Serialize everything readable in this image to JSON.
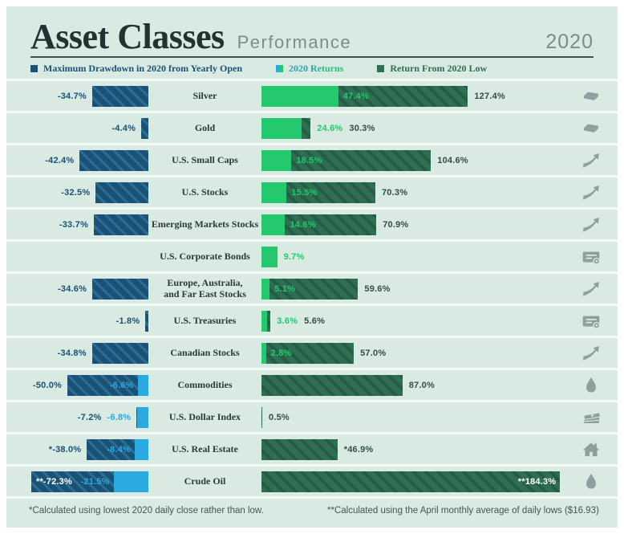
{
  "header": {
    "title": "Asset Classes",
    "subtitle": "Performance",
    "year": "2020"
  },
  "legend": {
    "drawdown_label": "Maximum Drawdown in 2020 from Yearly Open",
    "returns_label": "2020 Returns",
    "low_label": "Return From 2020 Low"
  },
  "colors": {
    "background": "#d9eae3",
    "drawdown_navy": "#1a5276",
    "negative_return_cyan": "#29abe2",
    "positive_return_green": "#23c96c",
    "return_from_low_dark_green": "#2e6e52",
    "icon_gray": "#8f9f9e"
  },
  "footnotes": {
    "left": "*Calculated using lowest 2020 daily close rather than low.",
    "right": "**Calculated using the April monthly average of daily lows ($16.93)"
  },
  "chart_data": {
    "type": "bar",
    "orientation": "horizontal",
    "title": "Asset Classes Performance 2020",
    "unit": "%",
    "categories": [
      "Silver",
      "Gold",
      "U.S. Small Caps",
      "U.S. Stocks",
      "Emerging Markets Stocks",
      "U.S. Corporate Bonds",
      "Europe, Australia, and Far East Stocks",
      "U.S. Treasuries",
      "Canadian Stocks",
      "Commodities",
      "U.S. Dollar Index",
      "U.S. Real Estate",
      "Crude Oil"
    ],
    "series": [
      {
        "name": "Maximum Drawdown in 2020 from Yearly Open",
        "values": [
          -34.7,
          -4.4,
          -42.4,
          -32.5,
          -33.7,
          null,
          -34.6,
          -1.8,
          -34.8,
          -50.0,
          -7.2,
          -38.0,
          -72.3
        ]
      },
      {
        "name": "2020 Returns",
        "values": [
          47.4,
          24.6,
          18.5,
          15.5,
          14.6,
          9.7,
          5.1,
          3.6,
          2.8,
          -6.6,
          -6.8,
          -8.4,
          -21.5
        ]
      },
      {
        "name": "Return From 2020 Low",
        "values": [
          127.4,
          30.3,
          104.6,
          70.3,
          70.9,
          null,
          59.6,
          5.6,
          57.0,
          87.0,
          0.5,
          46.9,
          184.3
        ]
      }
    ],
    "legend_position": "top",
    "grid": false
  },
  "rows": [
    {
      "label": "Silver",
      "icon": "silver-bars-icon",
      "drawdown": {
        "pct": 34.7,
        "text": "-34.7%",
        "inside": false
      },
      "pos": {
        "pct": 47.4,
        "text": "47.4%",
        "label": "inside"
      },
      "low": {
        "pct": 127.4,
        "text": "127.4%",
        "label": "outside"
      }
    },
    {
      "label": "Gold",
      "icon": "gold-bars-icon",
      "drawdown": {
        "pct": 4.4,
        "text": "-4.4%",
        "inside": false
      },
      "pos": {
        "pct": 24.6,
        "text": "24.6%",
        "label": "outside"
      },
      "low": {
        "pct": 30.3,
        "text": "30.3%",
        "label": "outside"
      }
    },
    {
      "label": "U.S. Small Caps",
      "icon": "stocks-chart-icon",
      "drawdown": {
        "pct": 42.4,
        "text": "-42.4%",
        "inside": false
      },
      "pos": {
        "pct": 18.5,
        "text": "18.5%",
        "label": "inside"
      },
      "low": {
        "pct": 104.6,
        "text": "104.6%",
        "label": "outside"
      }
    },
    {
      "label": "U.S. Stocks",
      "icon": "stocks-chart-icon",
      "drawdown": {
        "pct": 32.5,
        "text": "-32.5%",
        "inside": false
      },
      "pos": {
        "pct": 15.5,
        "text": "15.5%",
        "label": "inside"
      },
      "low": {
        "pct": 70.3,
        "text": "70.3%",
        "label": "outside"
      }
    },
    {
      "label": "Emerging Markets Stocks",
      "icon": "stocks-chart-icon",
      "drawdown": {
        "pct": 33.7,
        "text": "-33.7%",
        "inside": false
      },
      "pos": {
        "pct": 14.6,
        "text": "14.6%",
        "label": "inside"
      },
      "low": {
        "pct": 70.9,
        "text": "70.9%",
        "label": "outside"
      }
    },
    {
      "label": "U.S. Corporate Bonds",
      "icon": "bond-certificate-icon",
      "pos": {
        "pct": 9.7,
        "text": "9.7%",
        "label": "outside"
      }
    },
    {
      "label": "Europe, Australia,\nand Far East Stocks",
      "icon": "stocks-chart-icon",
      "drawdown": {
        "pct": 34.6,
        "text": "-34.6%",
        "inside": false
      },
      "pos": {
        "pct": 5.1,
        "text": "5.1%",
        "label": "inside"
      },
      "low": {
        "pct": 59.6,
        "text": "59.6%",
        "label": "outside"
      }
    },
    {
      "label": "U.S. Treasuries",
      "icon": "bond-certificate-icon",
      "drawdown": {
        "pct": 1.8,
        "text": "-1.8%",
        "inside": false
      },
      "pos": {
        "pct": 3.6,
        "text": "3.6%",
        "label": "outside"
      },
      "low": {
        "pct": 5.6,
        "text": "5.6%",
        "label": "outside"
      }
    },
    {
      "label": "Canadian Stocks",
      "icon": "stocks-chart-icon",
      "drawdown": {
        "pct": 34.8,
        "text": "-34.8%",
        "inside": false
      },
      "pos": {
        "pct": 2.8,
        "text": "2.8%",
        "label": "inside"
      },
      "low": {
        "pct": 57.0,
        "text": "57.0%",
        "label": "outside"
      }
    },
    {
      "label": "Commodities",
      "icon": "oil-droplet-icon",
      "drawdown": {
        "pct": 50.0,
        "text": "-50.0%",
        "inside": false
      },
      "neg": {
        "pct": 6.6,
        "text": "-6.6%",
        "label": "inside"
      },
      "low": {
        "pct": 87.0,
        "text": "87.0%",
        "label": "outside"
      }
    },
    {
      "label": "U.S. Dollar Index",
      "icon": "banknotes-icon",
      "drawdown": {
        "pct": 7.2,
        "text": "-7.2%",
        "inside": false
      },
      "neg": {
        "pct": 6.8,
        "text": "-6.8%",
        "label": "outside"
      },
      "low": {
        "pct": 0.5,
        "text": "0.5%",
        "label": "outside"
      }
    },
    {
      "label": "U.S. Real Estate",
      "icon": "house-icon",
      "drawdown": {
        "pct": 38.0,
        "text": "*-38.0%",
        "inside": false
      },
      "neg": {
        "pct": 8.4,
        "text": "-8.4%",
        "label": "inside"
      },
      "low": {
        "pct": 46.9,
        "text": "*46.9%",
        "label": "outside"
      }
    },
    {
      "label": "Crude Oil",
      "icon": "oil-droplet-icon",
      "drawdown": {
        "pct": 72.3,
        "text": "**-72.3%",
        "inside": true
      },
      "neg": {
        "pct": 21.5,
        "text": "-21.5%",
        "label": "inside"
      },
      "low": {
        "pct": 184.3,
        "text": "**184.3%",
        "label": "inside"
      }
    }
  ]
}
